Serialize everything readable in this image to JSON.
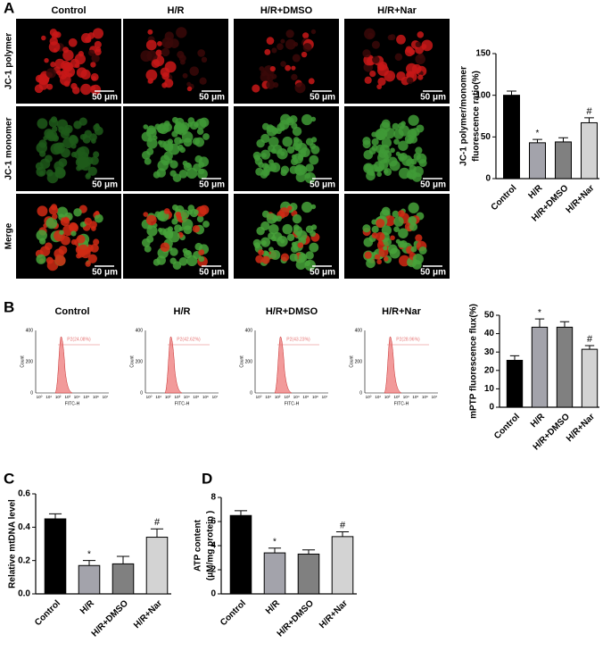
{
  "panel_labels": [
    "A",
    "B",
    "C",
    "D"
  ],
  "micrographs": {
    "columns": [
      "Control",
      "H/R",
      "H/R+DMSO",
      "H/R+Nar"
    ],
    "rows": [
      "JC-1 polymer",
      "JC-1 monomer",
      "Merge"
    ],
    "scale_bar": "50 μm"
  },
  "flow": {
    "columns": [
      "Control",
      "H/R",
      "H/R+DMSO",
      "H/R+Nar"
    ],
    "gates": [
      "P2(24.08%)",
      "P2(42.62%)",
      "P2(43.23%)",
      "P2(28.96%)"
    ],
    "x_label": "FITC-H",
    "y_label": "Count",
    "xticks": [
      "10⁰",
      "10¹",
      "10²",
      "10³",
      "10⁴",
      "10⁵",
      "10⁶",
      "10⁷"
    ],
    "yticks": [
      "0",
      "200",
      "400"
    ]
  },
  "chart_data": [
    {
      "type": "bar",
      "y_label": [
        "JC-1 polymer/monomer",
        "fluorescence ratio(%)"
      ],
      "categories": [
        "Control",
        "H/R",
        "H/R+DMSO",
        "H/R+Nar"
      ],
      "values": [
        100,
        43,
        44,
        67
      ],
      "errors": [
        5,
        4,
        5,
        6
      ],
      "significance": [
        null,
        "*",
        null,
        "#"
      ],
      "colors": [
        "#000000",
        "#a3a3ab",
        "#808080",
        "#d3d3d3"
      ],
      "ylim": [
        0,
        150
      ],
      "yticks": [
        0,
        50,
        100,
        150
      ]
    },
    {
      "type": "bar",
      "y_label": [
        "mPTP  fluorescence flux(%)"
      ],
      "categories": [
        "Control",
        "H/R",
        "H/R+DMSO",
        "H/R+Nar"
      ],
      "values": [
        25.5,
        43.5,
        43.5,
        31.5
      ],
      "errors": [
        2.5,
        4.5,
        3,
        2
      ],
      "significance": [
        null,
        "*",
        null,
        "#"
      ],
      "colors": [
        "#000000",
        "#a3a3ab",
        "#808080",
        "#d3d3d3"
      ],
      "ylim": [
        0,
        50
      ],
      "yticks": [
        0,
        10,
        20,
        30,
        40,
        50
      ]
    },
    {
      "type": "bar",
      "y_label": [
        "Relative mtDNA level"
      ],
      "categories": [
        "Control",
        "H/R",
        "H/R+DMSO",
        "H/R+Nar"
      ],
      "values": [
        0.45,
        0.17,
        0.18,
        0.34
      ],
      "errors": [
        0.03,
        0.03,
        0.045,
        0.05
      ],
      "significance": [
        null,
        "*",
        null,
        "#"
      ],
      "colors": [
        "#000000",
        "#a3a3ab",
        "#808080",
        "#d3d3d3"
      ],
      "ylim": [
        0,
        0.6
      ],
      "yticks": [
        {
          "value": 0,
          "label": "0.0"
        },
        0.2,
        0.4,
        0.6
      ]
    },
    {
      "type": "bar",
      "y_label": [
        "ATP content",
        "(μM/mg protein )"
      ],
      "categories": [
        "Control",
        "H/R",
        "H/R+DMSO",
        "H/R+Nar"
      ],
      "values": [
        6.5,
        3.4,
        3.3,
        4.75
      ],
      "errors": [
        0.4,
        0.4,
        0.35,
        0.4
      ],
      "significance": [
        null,
        "*",
        null,
        "#"
      ],
      "colors": [
        "#000000",
        "#a3a3ab",
        "#808080",
        "#d3d3d3"
      ],
      "ylim": [
        0,
        8
      ],
      "yticks": [
        0,
        2,
        4,
        6,
        8
      ]
    }
  ]
}
